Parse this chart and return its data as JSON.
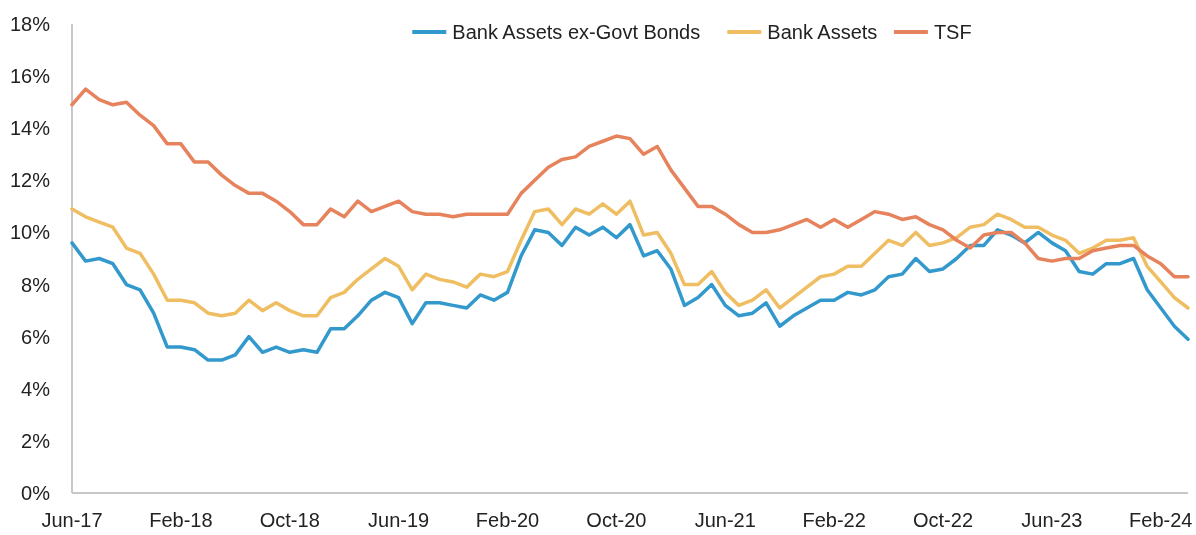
{
  "chart_data": {
    "type": "line",
    "categories": [
      "Jun-17",
      null,
      null,
      null,
      null,
      null,
      null,
      null,
      "Feb-18",
      null,
      null,
      null,
      null,
      null,
      null,
      null,
      "Oct-18",
      null,
      null,
      null,
      null,
      null,
      null,
      null,
      "Jun-19",
      null,
      null,
      null,
      null,
      null,
      null,
      null,
      "Feb-20",
      null,
      null,
      null,
      null,
      null,
      null,
      null,
      "Oct-20",
      null,
      null,
      null,
      null,
      null,
      null,
      null,
      "Jun-21",
      null,
      null,
      null,
      null,
      null,
      null,
      null,
      "Feb-22",
      null,
      null,
      null,
      null,
      null,
      null,
      null,
      "Oct-22",
      null,
      null,
      null,
      null,
      null,
      null,
      null,
      "Jun-23",
      null,
      null,
      null,
      null,
      null,
      null,
      null,
      "Feb-24",
      null,
      null
    ],
    "series": [
      {
        "name": "Bank Assets ex-Govt Bonds",
        "color": "#3399cc",
        "values": [
          9.6,
          8.9,
          9.0,
          8.8,
          8.0,
          7.8,
          6.9,
          5.6,
          5.6,
          5.5,
          5.1,
          5.1,
          5.3,
          6.0,
          5.4,
          5.6,
          5.4,
          5.5,
          5.4,
          6.3,
          6.3,
          6.8,
          7.4,
          7.7,
          7.5,
          6.5,
          7.3,
          7.3,
          7.2,
          7.1,
          7.6,
          7.4,
          7.7,
          9.1,
          10.1,
          10.0,
          9.5,
          10.2,
          9.9,
          10.2,
          9.8,
          10.3,
          9.1,
          9.3,
          8.6,
          7.2,
          7.5,
          8.0,
          7.2,
          6.8,
          6.9,
          7.3,
          6.4,
          6.8,
          7.1,
          7.4,
          7.4,
          7.7,
          7.6,
          7.8,
          8.3,
          8.4,
          9.0,
          8.5,
          8.6,
          9.0,
          9.5,
          9.5,
          10.1,
          9.9,
          9.6,
          10.0,
          9.6,
          9.3,
          8.5,
          8.4,
          8.8,
          8.8,
          9.0,
          7.8,
          7.1,
          6.4,
          5.9
        ]
      },
      {
        "name": "Bank Assets",
        "color": "#f0be62",
        "values": [
          10.9,
          10.6,
          10.4,
          10.2,
          9.4,
          9.2,
          8.4,
          7.4,
          7.4,
          7.3,
          6.9,
          6.8,
          6.9,
          7.4,
          7.0,
          7.3,
          7.0,
          6.8,
          6.8,
          7.5,
          7.7,
          8.2,
          8.6,
          9.0,
          8.7,
          7.8,
          8.4,
          8.2,
          8.1,
          7.9,
          8.4,
          8.3,
          8.5,
          9.7,
          10.8,
          10.9,
          10.3,
          10.9,
          10.7,
          11.1,
          10.7,
          11.2,
          9.9,
          10.0,
          9.2,
          8.0,
          8.0,
          8.5,
          7.7,
          7.2,
          7.4,
          7.8,
          7.1,
          7.5,
          7.9,
          8.3,
          8.4,
          8.7,
          8.7,
          9.2,
          9.7,
          9.5,
          10.0,
          9.5,
          9.6,
          9.8,
          10.2,
          10.3,
          10.7,
          10.5,
          10.2,
          10.2,
          9.9,
          9.7,
          9.2,
          9.4,
          9.7,
          9.7,
          9.8,
          8.7,
          8.1,
          7.5,
          7.1
        ]
      },
      {
        "name": "TSF",
        "color": "#e6825c",
        "values": [
          14.9,
          15.5,
          15.1,
          14.9,
          15.0,
          14.5,
          14.1,
          13.4,
          13.4,
          12.7,
          12.7,
          12.2,
          11.8,
          11.5,
          11.5,
          11.2,
          10.8,
          10.3,
          10.3,
          10.9,
          10.6,
          11.2,
          10.8,
          11.0,
          11.2,
          10.8,
          10.7,
          10.7,
          10.6,
          10.7,
          10.7,
          10.7,
          10.7,
          11.5,
          12.0,
          12.5,
          12.8,
          12.9,
          13.3,
          13.5,
          13.7,
          13.6,
          13.0,
          13.3,
          12.4,
          11.7,
          11.0,
          11.0,
          10.7,
          10.3,
          10.0,
          10.0,
          10.1,
          10.3,
          10.5,
          10.2,
          10.5,
          10.2,
          10.5,
          10.8,
          10.7,
          10.5,
          10.6,
          10.3,
          10.1,
          9.7,
          9.4,
          9.9,
          10.0,
          10.0,
          9.6,
          9.0,
          8.9,
          9.0,
          9.0,
          9.3,
          9.4,
          9.5,
          9.5,
          9.1,
          8.8,
          8.3,
          8.3
        ]
      }
    ],
    "ylim": [
      0,
      18
    ],
    "yticks": [
      {
        "value": 0,
        "label": "0%"
      },
      {
        "value": 2,
        "label": "2%"
      },
      {
        "value": 4,
        "label": "4%"
      },
      {
        "value": 6,
        "label": "6%"
      },
      {
        "value": 8,
        "label": "8%"
      },
      {
        "value": 10,
        "label": "10%"
      },
      {
        "value": 12,
        "label": "12%"
      },
      {
        "value": 14,
        "label": "14%"
      },
      {
        "value": 16,
        "label": "16%"
      },
      {
        "value": 18,
        "label": "18%"
      }
    ],
    "legend": "top",
    "grid": false
  }
}
